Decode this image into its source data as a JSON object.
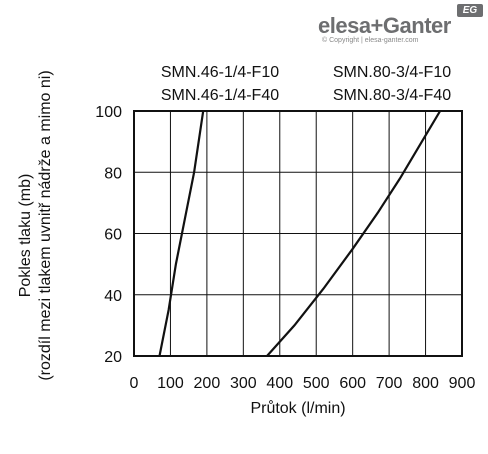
{
  "brand": {
    "name": "elesa+Ganter",
    "badge": "EG",
    "copyright": "© Copyright | elesa-ganter.com"
  },
  "chart_data": {
    "type": "line",
    "xlabel": "Průtok (l/min)",
    "ylabel_line1": "Pokles tlaku (mb)",
    "ylabel_line2": "(rozdíl mezi tlakem uvnitř nádrže a mimo ni)",
    "xlim": [
      0,
      900
    ],
    "ylim": [
      20,
      100
    ],
    "x_ticks": [
      0,
      100,
      200,
      300,
      400,
      500,
      600,
      700,
      800,
      900
    ],
    "y_ticks": [
      20,
      40,
      60,
      80,
      100
    ],
    "grid": true,
    "series": [
      {
        "name": "SMN.46-1/4-F10 / SMN.46-1/4-F40",
        "labels": [
          "SMN.46-1/4-F10",
          "SMN.46-1/4-F40"
        ],
        "points": [
          [
            70,
            20
          ],
          [
            95,
            35
          ],
          [
            115,
            50
          ],
          [
            140,
            65
          ],
          [
            165,
            80
          ],
          [
            190,
            100
          ]
        ]
      },
      {
        "name": "SMN.80-3/4-F10 / SMN.80-3/4-F40",
        "labels": [
          "SMN.80-3/4-F10",
          "SMN.80-3/4-F40"
        ],
        "points": [
          [
            365,
            20
          ],
          [
            440,
            30
          ],
          [
            520,
            42
          ],
          [
            600,
            55
          ],
          [
            670,
            67
          ],
          [
            730,
            78
          ],
          [
            790,
            90
          ],
          [
            840,
            100
          ]
        ]
      }
    ]
  }
}
